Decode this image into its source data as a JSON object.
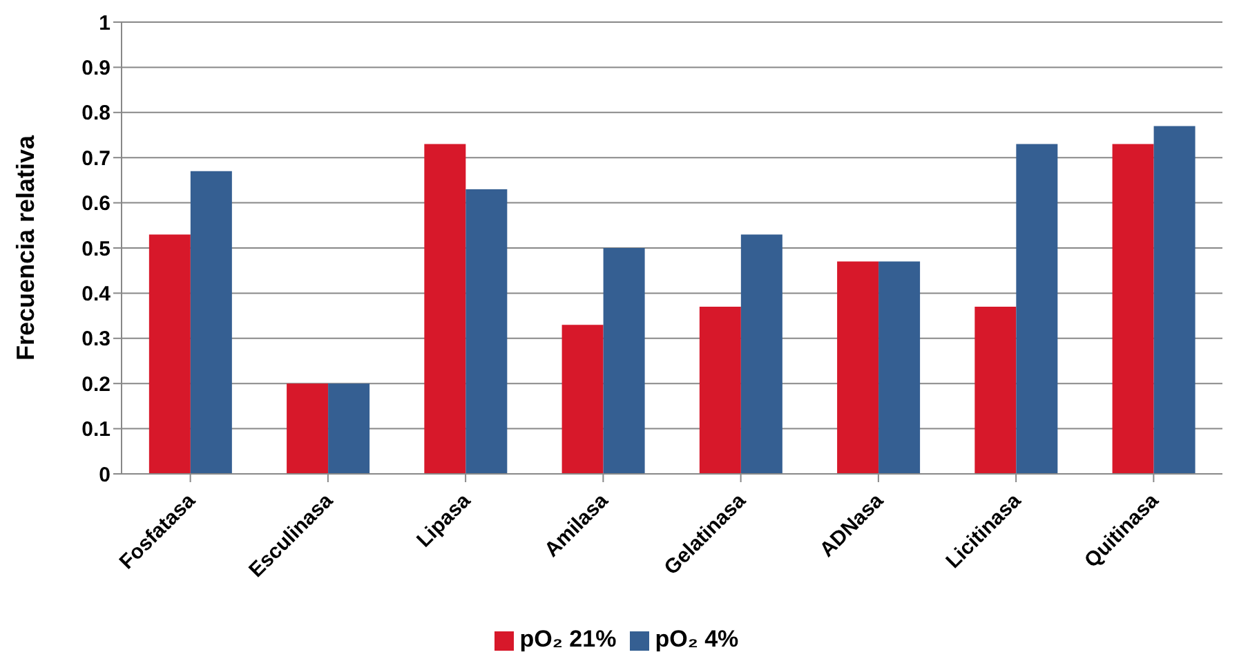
{
  "chart_data": {
    "type": "bar",
    "ylabel": "Frecuencia relativa",
    "categories": [
      "Fosfatasa",
      "Esculinasa",
      "Lipasa",
      "Amilasa",
      "Gelatinasa",
      "ADNasa",
      "Licitinasa",
      "Quitinasa"
    ],
    "series": [
      {
        "name": "pO₂ 21%",
        "color": "#d7182a",
        "values": [
          0.53,
          0.2,
          0.73,
          0.33,
          0.37,
          0.47,
          0.37,
          0.73
        ]
      },
      {
        "name": "pO₂ 4%",
        "color": "#355f92",
        "values": [
          0.67,
          0.2,
          0.63,
          0.5,
          0.53,
          0.47,
          0.73,
          0.77
        ]
      }
    ],
    "ylim": [
      0,
      1
    ],
    "yticks": [
      0,
      0.1,
      0.2,
      0.3,
      0.4,
      0.5,
      0.6,
      0.7,
      0.8,
      0.9,
      1
    ],
    "grid": "y",
    "legend": "bottom"
  }
}
